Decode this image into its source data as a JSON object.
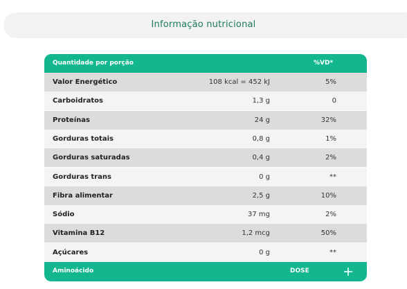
{
  "header": {
    "title": "Informação nutricional"
  },
  "table": {
    "columns": [
      "Quantidade por porção",
      "%VD*"
    ],
    "rows": [
      [
        "Valor Energético",
        "108 kcal = 452 kJ",
        "5%"
      ],
      [
        "Carboidratos",
        "1,3 g",
        "0"
      ],
      [
        "Proteínas",
        "24 g",
        "32%"
      ],
      [
        "Gorduras totais",
        "0,8 g",
        "1%"
      ],
      [
        "Gorduras saturadas",
        "0,4 g",
        "2%"
      ],
      [
        "Gorduras trans",
        "0 g",
        "**"
      ],
      [
        "Fibra alimentar",
        "2,5 g",
        "10%"
      ],
      [
        "Sódio",
        "37 mg",
        "2%"
      ],
      [
        "Vitamina B12",
        "1,2 mcg",
        "50%"
      ],
      [
        "Açúcares",
        "0 g",
        "**"
      ]
    ],
    "footer": [
      "Aminoácido",
      "DOSE"
    ]
  }
}
